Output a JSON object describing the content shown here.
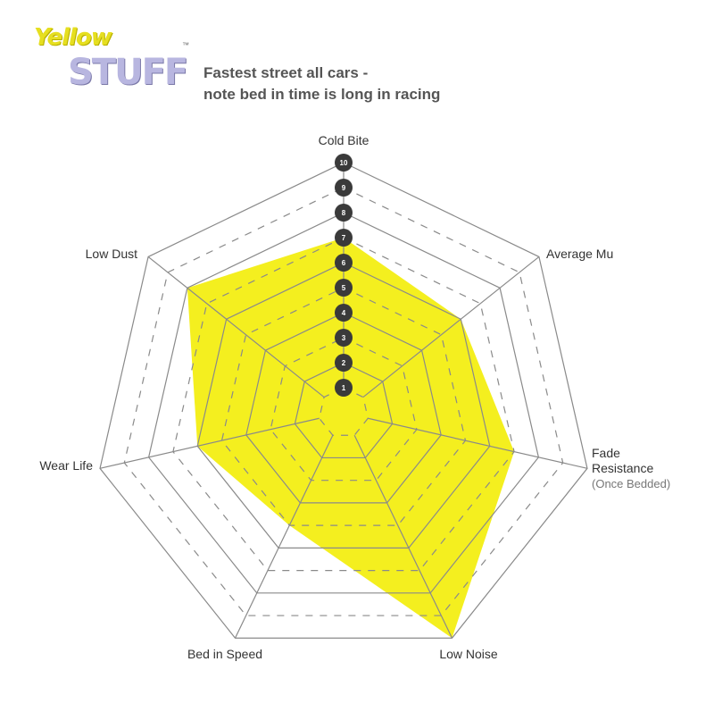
{
  "logo": {
    "line1": "Yellow",
    "line2": "STUFF",
    "tm": "™"
  },
  "subtitle": [
    "Fastest street all cars -",
    "note bed in time is long in racing"
  ],
  "colors": {
    "fill": "#f4ef1f",
    "grid": "#8a8a8a",
    "badge": "#3a3a3a",
    "text": "#333333"
  },
  "chart_data": {
    "type": "radar",
    "title": "",
    "axes": [
      "Cold Bite",
      "Average Mu",
      "Fade Resistance",
      "Low Noise",
      "Bed in Speed",
      "Wear Life",
      "Low Dust"
    ],
    "axis_note": {
      "Fade Resistance": "(Once Bedded)"
    },
    "scale_labels": [
      "1",
      "2",
      "3",
      "4",
      "5",
      "6",
      "7",
      "8",
      "9",
      "10"
    ],
    "range": [
      0,
      10
    ],
    "grid": "solid rings at even levels, dashed at odd levels",
    "series": [
      {
        "values": [
          7,
          6,
          7,
          10,
          5,
          6,
          8
        ]
      }
    ]
  }
}
